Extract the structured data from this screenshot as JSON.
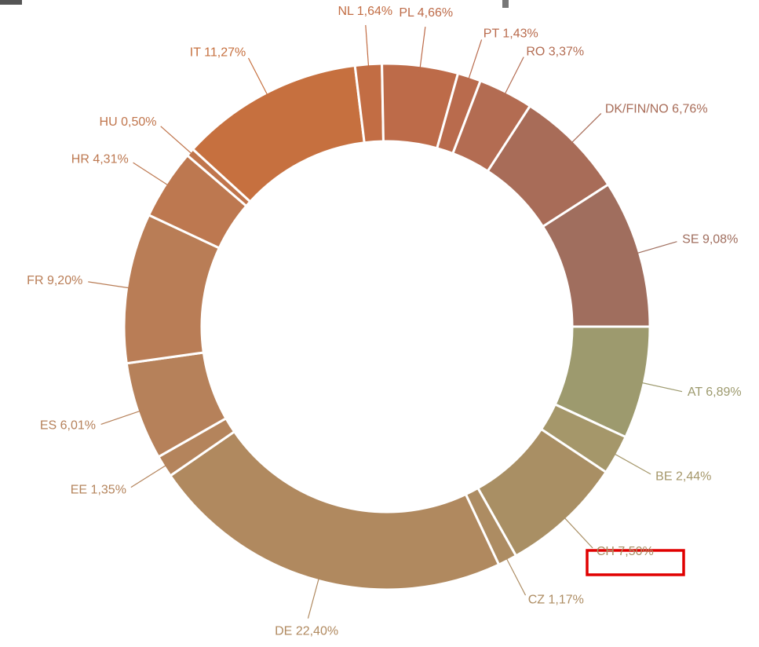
{
  "chart_data": {
    "type": "donut",
    "categories": [
      "AT",
      "BE",
      "CH",
      "CZ",
      "DE",
      "EE",
      "ES",
      "FR",
      "HR",
      "HU",
      "IT",
      "NL",
      "PL",
      "PT",
      "RO",
      "DK/FIN/NO",
      "SE"
    ],
    "values": [
      6.89,
      2.44,
      7.5,
      1.17,
      22.4,
      1.35,
      6.01,
      9.2,
      4.31,
      0.5,
      11.27,
      1.64,
      4.66,
      1.43,
      3.37,
      6.76,
      9.08
    ],
    "value_labels": [
      "6,89%",
      "2,44%",
      "7,50%",
      "1,17%",
      "22,40%",
      "1,35%",
      "6,01%",
      "9,20%",
      "4,31%",
      "0,50%",
      "11,27%",
      "1,64%",
      "4,66%",
      "1,43%",
      "3,37%",
      "6,76%",
      "9,08%"
    ],
    "colors": [
      "#9d9a6e",
      "#a5976a",
      "#a98f64",
      "#ad8c62",
      "#b0895f",
      "#b4845c",
      "#b6815a",
      "#b97d56",
      "#bd7850",
      "#c0754c",
      "#c6703f",
      "#c26d44",
      "#bd6b49",
      "#b96b4d",
      "#b36c52",
      "#a86c58",
      "#a06e5e"
    ]
  }
}
